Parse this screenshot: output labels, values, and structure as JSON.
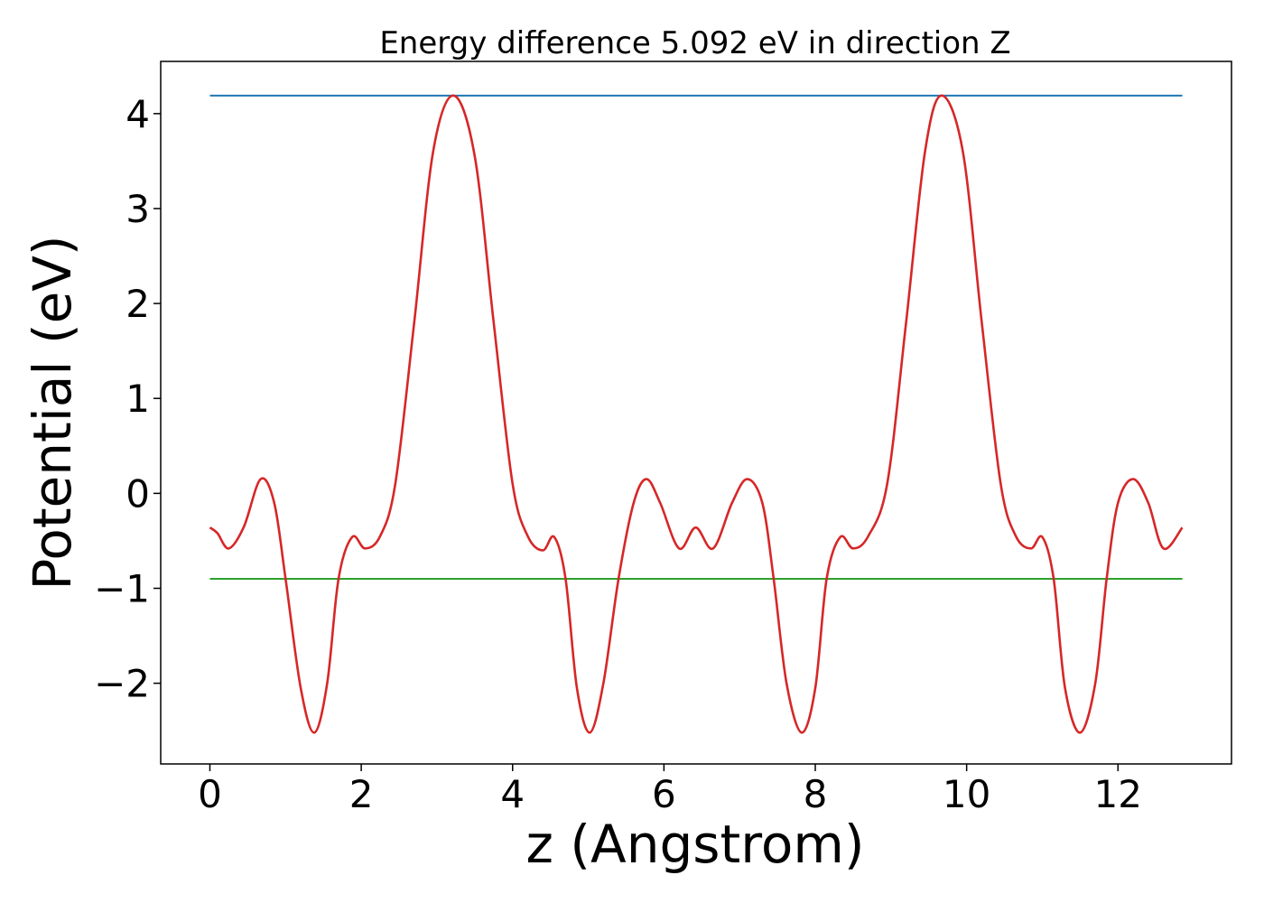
{
  "chart_data": {
    "type": "line",
    "title": "Energy difference 5.092 eV in direction Z",
    "xlabel": "z (Angstrom)",
    "ylabel": "Potential (eV)",
    "xlim": [
      -0.65,
      13.5
    ],
    "ylim": [
      -2.85,
      4.55
    ],
    "xticks": [
      0,
      2,
      4,
      6,
      8,
      10,
      12
    ],
    "yticks": [
      -2,
      -1,
      0,
      1,
      2,
      3,
      4
    ],
    "xtick_labels": [
      "0",
      "2",
      "4",
      "6",
      "8",
      "10",
      "12"
    ],
    "ytick_labels": [
      "−2",
      "−1",
      "0",
      "1",
      "2",
      "3",
      "4"
    ],
    "grid": false,
    "series": [
      {
        "color": "#1f77b4",
        "x": [
          0,
          12.85
        ],
        "y": [
          4.19,
          4.19
        ]
      },
      {
        "color": "#2ca02c",
        "x": [
          0,
          12.85
        ],
        "y": [
          -0.9,
          -0.9
        ]
      },
      {
        "color": "#d62728",
        "x": [
          0,
          0.1,
          0.25,
          0.45,
          0.67,
          0.85,
          1.0,
          1.2,
          1.38,
          1.55,
          1.7,
          1.88,
          2.05,
          2.25,
          2.45,
          2.7,
          2.95,
          3.22,
          3.5,
          3.75,
          4.0,
          4.2,
          4.4,
          4.55,
          4.7,
          4.85,
          5.02,
          5.2,
          5.4,
          5.6,
          5.77,
          5.95,
          6.2,
          6.42,
          6.65,
          6.9,
          7.1,
          7.3,
          7.45,
          7.62,
          7.82,
          8.0,
          8.15,
          8.33,
          8.5,
          8.7,
          8.95,
          9.2,
          9.45,
          9.67,
          9.95,
          10.2,
          10.45,
          10.65,
          10.85,
          11.0,
          11.15,
          11.3,
          11.5,
          11.7,
          11.85,
          12.0,
          12.2,
          12.4,
          12.6,
          12.85
        ],
        "y": [
          -0.36,
          -0.42,
          -0.58,
          -0.35,
          0.15,
          -0.1,
          -0.9,
          -2.05,
          -2.52,
          -2.0,
          -0.9,
          -0.46,
          -0.58,
          -0.45,
          0.1,
          1.8,
          3.6,
          4.19,
          3.55,
          1.8,
          0.1,
          -0.45,
          -0.6,
          -0.46,
          -0.9,
          -2.05,
          -2.52,
          -2.0,
          -0.9,
          -0.1,
          0.15,
          -0.1,
          -0.58,
          -0.36,
          -0.58,
          -0.1,
          0.15,
          -0.1,
          -0.9,
          -2.0,
          -2.52,
          -2.05,
          -0.9,
          -0.46,
          -0.58,
          -0.45,
          0.1,
          1.8,
          3.6,
          4.19,
          3.6,
          1.8,
          0.1,
          -0.45,
          -0.58,
          -0.46,
          -0.9,
          -2.05,
          -2.52,
          -2.0,
          -0.9,
          -0.1,
          0.15,
          -0.1,
          -0.58,
          -0.36
        ]
      }
    ]
  }
}
